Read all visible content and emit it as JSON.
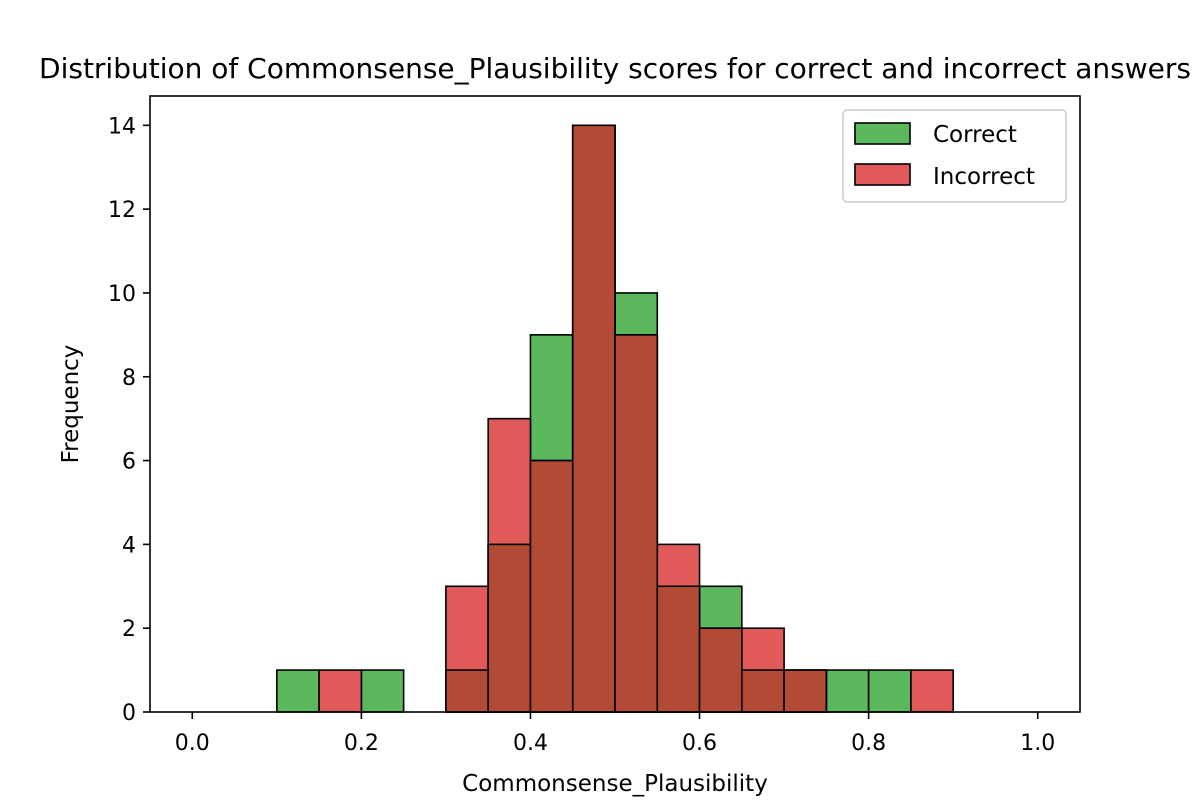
{
  "chart_data": {
    "type": "bar",
    "title": "Distribution of Commonsense_Plausibility scores for correct and incorrect answers",
    "xlabel": "Commonsense_Plausibility",
    "ylabel": "Frequency",
    "xlim": [
      -0.05,
      1.05
    ],
    "ylim": [
      0,
      14.7
    ],
    "x_ticks": [
      "0.0",
      "0.2",
      "0.4",
      "0.6",
      "0.8",
      "1.0"
    ],
    "x_tick_values": [
      0,
      0.2,
      0.4,
      0.6,
      0.8,
      1.0
    ],
    "y_ticks": [
      "0",
      "2",
      "4",
      "6",
      "8",
      "10",
      "12",
      "14"
    ],
    "y_tick_values": [
      0,
      2,
      4,
      6,
      8,
      10,
      12,
      14
    ],
    "grid": false,
    "legend_position": "top-right",
    "bin_edges": [
      0.0,
      0.05,
      0.1,
      0.15,
      0.2,
      0.25,
      0.3,
      0.35,
      0.4,
      0.45,
      0.5,
      0.55,
      0.6,
      0.65,
      0.7,
      0.75,
      0.8,
      0.85,
      0.9,
      0.95,
      1.0
    ],
    "series": [
      {
        "name": "Correct",
        "color": "#5cb85c",
        "values": [
          0,
          0,
          1,
          0,
          1,
          0,
          1,
          4,
          9,
          14,
          10,
          3,
          3,
          1,
          1,
          1,
          1,
          0,
          0,
          0
        ]
      },
      {
        "name": "Incorrect",
        "color": "#e05a5a",
        "values": [
          0,
          0,
          0,
          1,
          0,
          0,
          3,
          7,
          6,
          14,
          9,
          4,
          2,
          2,
          1,
          0,
          0,
          1,
          0,
          0
        ]
      }
    ],
    "overlap_color": "#b34a36"
  }
}
